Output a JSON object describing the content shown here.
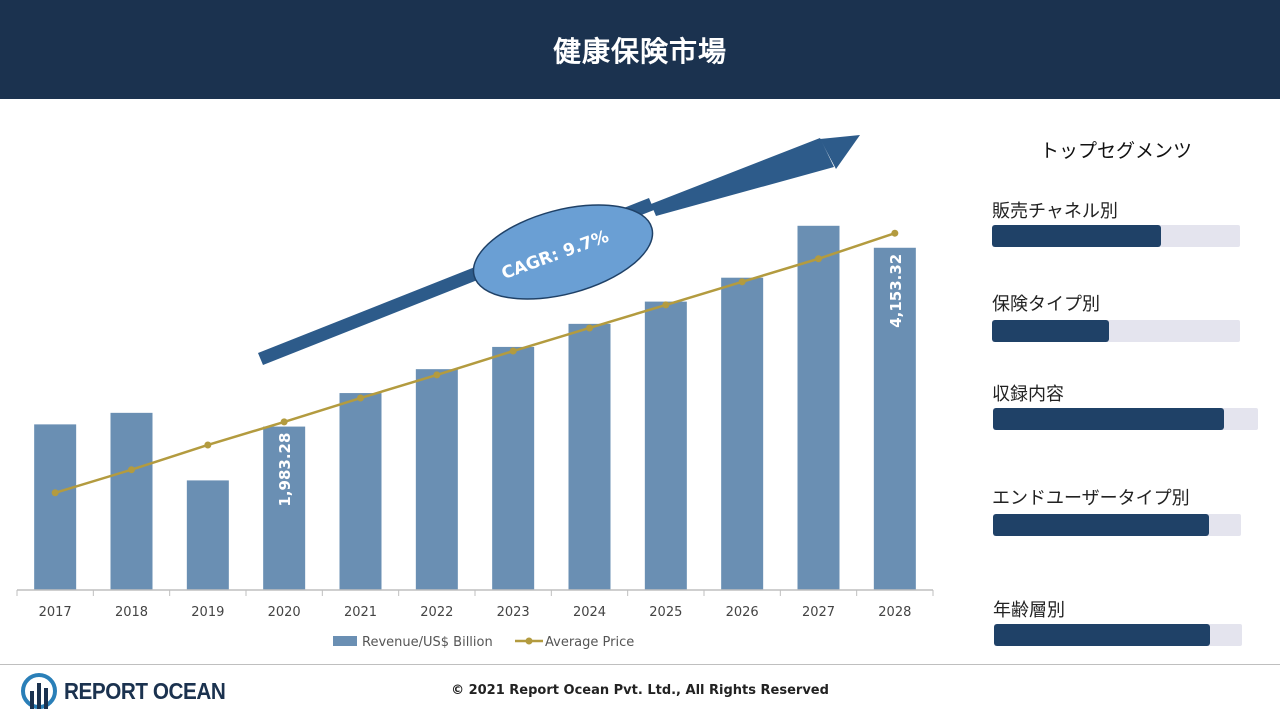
{
  "header": {
    "title": "健康保険市場"
  },
  "chart_data": {
    "type": "bar",
    "categories": [
      "2017",
      "2018",
      "2019",
      "2020",
      "2021",
      "2022",
      "2023",
      "2024",
      "2025",
      "2026",
      "2027",
      "2028"
    ],
    "series": [
      {
        "name": "Revenue/US$ Billion",
        "type": "bar",
        "values": [
          2010,
          2150,
          1330,
          1983.28,
          2390,
          2680,
          2950,
          3230,
          3500,
          3790,
          4420,
          4153.32
        ]
      },
      {
        "name": "Average Price",
        "type": "line",
        "values": [
          1180,
          1460,
          1760,
          2040,
          2330,
          2610,
          2900,
          3180,
          3460,
          3740,
          4020,
          4330
        ]
      }
    ],
    "data_labels": [
      {
        "category": "2020",
        "text": "1,983.28"
      },
      {
        "category": "2028",
        "text": "4,153.32"
      }
    ],
    "annotation": "CAGR: 9.7%",
    "ylim": [
      0,
      5000
    ],
    "legend_position": "bottom",
    "colors": {
      "bar": "#6a8fb3",
      "line": "#b39b3f",
      "arrow": "#2d5b8a",
      "ellipse": "#6a9fd4"
    }
  },
  "sidebar": {
    "title": "トップセグメンツ",
    "segments": [
      {
        "label": "販売チャネル別",
        "fill": 0.68
      },
      {
        "label": "保険タイプ別",
        "fill": 0.47
      },
      {
        "label": "収録内容",
        "fill": 0.87
      },
      {
        "label": "エンドユーザータイプ別",
        "fill": 0.87
      },
      {
        "label": "年齢層別",
        "fill": 0.87
      }
    ]
  },
  "footer": {
    "logo_text": "REPORT OCEAN",
    "copyright": "© 2021 Report Ocean Pvt. Ltd., All Rights Reserved"
  }
}
